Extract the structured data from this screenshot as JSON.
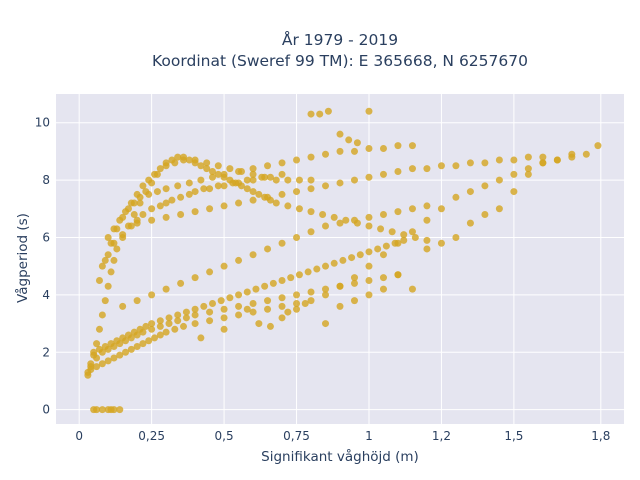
{
  "chart_data": {
    "type": "scatter",
    "title_lines": [
      "År 1979 - 2019",
      "Koordinat (Sweref 99 TM): E 365668, N 6257670"
    ],
    "xlabel": "Signifikant våghöjd (m)",
    "ylabel": "Vågperiod (s)",
    "xlim": [
      -0.08,
      1.88
    ],
    "ylim": [
      -0.5,
      11
    ],
    "x_ticks": [
      0,
      0.25,
      0.5,
      0.75,
      1,
      1.25,
      1.5,
      1.8
    ],
    "x_tick_labels": [
      "0",
      "0,25",
      "0,5",
      "0,75",
      "1",
      "1,2",
      "1,5",
      "1,8"
    ],
    "y_ticks": [
      0,
      2,
      4,
      6,
      8,
      10
    ],
    "y_tick_labels": [
      "0",
      "2",
      "4",
      "6",
      "8",
      "10"
    ],
    "grid": true,
    "plot_bgcolor": "#e5e5f0",
    "marker_color": "#d4a520",
    "series": [
      {
        "name": "",
        "x": [
          0.05,
          0.08,
          0.1,
          0.12,
          0.14,
          0.06,
          0.11,
          0.03,
          0.04,
          0.05,
          0.06,
          0.07,
          0.08,
          0.09,
          0.1,
          0.11,
          0.12,
          0.13,
          0.15,
          0.17,
          0.19,
          0.21,
          0.23,
          0.25,
          0.27,
          0.3,
          0.33,
          0.36,
          0.4,
          0.44,
          0.48,
          0.52,
          0.56,
          0.6,
          0.64,
          0.68,
          0.72,
          0.76,
          0.8,
          0.03,
          0.04,
          0.06,
          0.08,
          0.1,
          0.12,
          0.14,
          0.16,
          0.18,
          0.2,
          0.22,
          0.24,
          0.26,
          0.28,
          0.3,
          0.33,
          0.36,
          0.4,
          0.45,
          0.5,
          0.55,
          0.6,
          0.65,
          0.7,
          0.75,
          0.8,
          0.85,
          0.9,
          0.95,
          1.0,
          1.05,
          1.1,
          1.15,
          1.2,
          1.25,
          1.3,
          1.35,
          1.4,
          1.45,
          1.5,
          1.55,
          1.6,
          1.65,
          1.7,
          1.75,
          1.79,
          0.08,
          0.1,
          0.12,
          0.15,
          0.18,
          0.2,
          0.22,
          0.25,
          0.28,
          0.3,
          0.32,
          0.35,
          0.38,
          0.4,
          0.43,
          0.45,
          0.48,
          0.5,
          0.53,
          0.55,
          0.58,
          0.6,
          0.63,
          0.66,
          0.7,
          0.04,
          0.06,
          0.08,
          0.1,
          0.12,
          0.14,
          0.16,
          0.18,
          0.2,
          0.22,
          0.25,
          0.28,
          0.31,
          0.34,
          0.37,
          0.4,
          0.45,
          0.5,
          0.55,
          0.6,
          0.65,
          0.7,
          0.75,
          0.8,
          0.85,
          0.9,
          0.95,
          1.0,
          1.05,
          1.1,
          0.2,
          0.25,
          0.3,
          0.35,
          0.4,
          0.45,
          0.5,
          0.55,
          0.6,
          0.65,
          0.7,
          0.75,
          0.8,
          0.85,
          0.9,
          0.95,
          1.0,
          1.05,
          1.1,
          1.15,
          1.2,
          1.25,
          1.3,
          1.35,
          1.4,
          1.45,
          1.5,
          1.55,
          1.6,
          0.07,
          0.09,
          0.11,
          0.13,
          0.15,
          0.17,
          0.19,
          0.21,
          0.24,
          0.27,
          0.3,
          0.34,
          0.38,
          0.42,
          0.46,
          0.5,
          0.55,
          0.6,
          0.65,
          0.7,
          0.75,
          0.8,
          0.85,
          0.9,
          0.95,
          1.0,
          1.05,
          1.1,
          1.15,
          0.8,
          0.83,
          0.86,
          0.9,
          0.93,
          0.96,
          1.0,
          0.42,
          0.5,
          0.58,
          0.62,
          0.66,
          0.7,
          0.72,
          0.75,
          0.78,
          0.85,
          0.9,
          0.95,
          1.0,
          1.05,
          1.1,
          1.15,
          1.2,
          1.25,
          1.3,
          1.35,
          1.4,
          1.45,
          1.5,
          1.55,
          1.6,
          1.65,
          1.7,
          0.05,
          0.07,
          0.09,
          0.11,
          0.13,
          0.15,
          0.17,
          0.19,
          0.21,
          0.23,
          0.25,
          0.28,
          0.31,
          0.34,
          0.37,
          0.4,
          0.43,
          0.46,
          0.49,
          0.52,
          0.55,
          0.58,
          0.61,
          0.64,
          0.67,
          0.7,
          0.73,
          0.76,
          0.79,
          0.82,
          0.85,
          0.88,
          0.91,
          0.94,
          0.97,
          1.0,
          1.03,
          1.06,
          1.09,
          1.12,
          0.15,
          0.2,
          0.25,
          0.3,
          0.35,
          0.4,
          0.45,
          0.5,
          0.55,
          0.6,
          0.65,
          0.7,
          0.75,
          0.8,
          0.85,
          0.9,
          0.95,
          1.0,
          1.05,
          1.1,
          1.15,
          1.2,
          0.1,
          0.12,
          0.14,
          0.16,
          0.18,
          0.2,
          0.22,
          0.24,
          0.26,
          0.28,
          0.3,
          0.32,
          0.34,
          0.36,
          0.38,
          0.4,
          0.42,
          0.44,
          0.46,
          0.48,
          0.5,
          0.52,
          0.54,
          0.56,
          0.58,
          0.6,
          0.62,
          0.64,
          0.66,
          0.68,
          0.72,
          0.76,
          0.8,
          0.84,
          0.88,
          0.92,
          0.96,
          1.0,
          1.04,
          1.08,
          1.12,
          1.16,
          1.2
        ],
        "y": [
          0,
          0,
          0,
          0,
          0,
          0,
          0,
          1.2,
          1.5,
          1.9,
          2.3,
          2.8,
          3.3,
          3.8,
          4.3,
          4.8,
          5.2,
          5.6,
          6.0,
          6.4,
          6.8,
          7.2,
          7.6,
          7.9,
          8.2,
          8.5,
          8.6,
          8.7,
          8.7,
          8.6,
          8.5,
          8.4,
          8.3,
          8.2,
          8.1,
          8.0,
          8.0,
          8.0,
          8.0,
          1.3,
          1.4,
          1.5,
          1.6,
          1.7,
          1.8,
          1.9,
          2.0,
          2.1,
          2.2,
          2.3,
          2.4,
          2.5,
          2.6,
          2.7,
          2.8,
          2.9,
          3.0,
          3.1,
          3.2,
          3.3,
          3.4,
          3.5,
          3.6,
          3.7,
          3.8,
          4.0,
          4.3,
          4.6,
          5.0,
          5.4,
          5.8,
          6.2,
          6.6,
          7.0,
          7.4,
          7.6,
          7.8,
          8.0,
          8.2,
          8.4,
          8.6,
          8.7,
          8.8,
          8.9,
          9.2,
          5.0,
          5.4,
          5.8,
          6.1,
          6.4,
          6.6,
          6.8,
          7.0,
          7.1,
          7.2,
          7.3,
          7.4,
          7.5,
          7.6,
          7.7,
          7.7,
          7.8,
          7.8,
          7.9,
          7.9,
          8.0,
          8.0,
          8.1,
          8.1,
          8.2,
          1.6,
          1.8,
          2.0,
          2.1,
          2.2,
          2.3,
          2.4,
          2.5,
          2.6,
          2.7,
          2.8,
          2.9,
          3.0,
          3.1,
          3.2,
          3.3,
          3.4,
          3.5,
          3.6,
          3.7,
          3.8,
          3.9,
          4.0,
          4.1,
          4.2,
          4.3,
          4.4,
          4.5,
          4.6,
          4.7,
          6.5,
          6.6,
          6.7,
          6.8,
          6.9,
          7.0,
          7.1,
          7.2,
          7.3,
          7.4,
          7.5,
          7.6,
          7.7,
          7.8,
          7.9,
          8.0,
          8.1,
          8.2,
          8.3,
          8.4,
          8.4,
          8.5,
          8.5,
          8.6,
          8.6,
          8.7,
          8.7,
          8.8,
          8.8,
          4.5,
          5.2,
          5.8,
          6.3,
          6.7,
          7.0,
          7.2,
          7.4,
          7.5,
          7.6,
          7.7,
          7.8,
          7.9,
          8.0,
          8.1,
          8.2,
          8.3,
          8.4,
          8.5,
          8.6,
          8.7,
          8.8,
          8.9,
          9.0,
          9.0,
          9.1,
          9.1,
          9.2,
          9.2,
          10.3,
          10.3,
          10.4,
          9.6,
          9.4,
          9.3,
          10.4,
          2.5,
          2.8,
          3.5,
          3.0,
          2.9,
          3.2,
          3.4,
          3.5,
          3.7,
          3.0,
          3.6,
          3.8,
          4.0,
          4.2,
          4.7,
          4.2,
          5.6,
          5.8,
          6.0,
          6.5,
          6.8,
          7.0,
          7.6,
          8.2,
          8.6,
          8.7,
          8.9,
          2.0,
          2.1,
          2.2,
          2.3,
          2.4,
          2.5,
          2.6,
          2.7,
          2.8,
          2.9,
          3.0,
          3.1,
          3.2,
          3.3,
          3.4,
          3.5,
          3.6,
          3.7,
          3.8,
          3.9,
          4.0,
          4.1,
          4.2,
          4.3,
          4.4,
          4.5,
          4.6,
          4.7,
          4.8,
          4.9,
          5.0,
          5.1,
          5.2,
          5.3,
          5.4,
          5.5,
          5.6,
          5.7,
          5.8,
          5.9,
          3.6,
          3.8,
          4.0,
          4.2,
          4.4,
          4.6,
          4.8,
          5.0,
          5.2,
          5.4,
          5.6,
          5.8,
          6.0,
          6.2,
          6.4,
          6.5,
          6.6,
          6.7,
          6.8,
          6.9,
          7.0,
          7.1,
          6.0,
          6.3,
          6.6,
          6.9,
          7.2,
          7.5,
          7.8,
          8.0,
          8.2,
          8.4,
          8.6,
          8.7,
          8.8,
          8.8,
          8.7,
          8.6,
          8.5,
          8.4,
          8.3,
          8.2,
          8.1,
          8.0,
          7.9,
          7.8,
          7.7,
          7.6,
          7.5,
          7.4,
          7.3,
          7.2,
          7.1,
          7.0,
          6.9,
          6.8,
          6.7,
          6.6,
          6.5,
          6.4,
          6.3,
          6.2,
          6.1,
          6.0,
          5.9
        ]
      }
    ]
  }
}
